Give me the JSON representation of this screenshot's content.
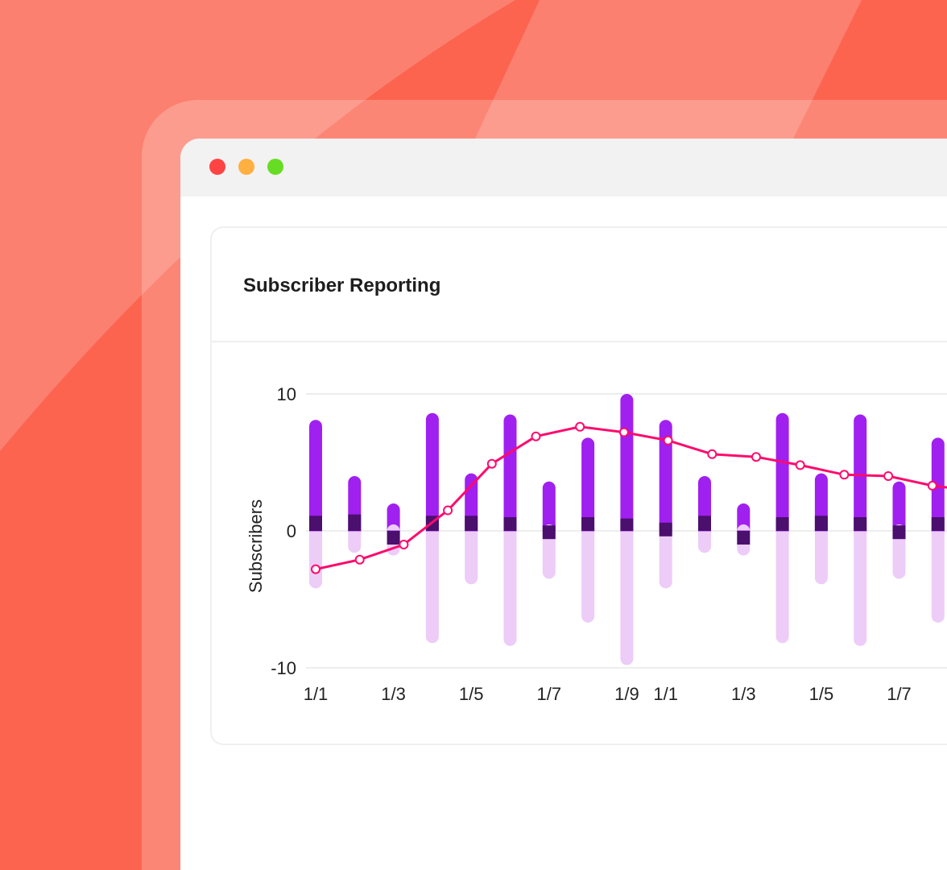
{
  "window": {
    "controls": [
      {
        "name": "close",
        "color": "#FF4444"
      },
      {
        "name": "minimize",
        "color": "#FFB040"
      },
      {
        "name": "maximize",
        "color": "#66DD22"
      }
    ]
  },
  "card": {
    "title": "Subscriber Reporting"
  },
  "colors": {
    "background": "#FC6450",
    "positive": "#A020F0",
    "net": "#4B0F6E",
    "negative": "#EDCCF8",
    "line": "#FF0A6C"
  },
  "chart_data": {
    "type": "bar",
    "ylabel": "Subscribers",
    "ylim": [
      -10,
      10
    ],
    "yticks": [
      "10",
      "0",
      "-10"
    ],
    "ytick_values": [
      10,
      0,
      -10
    ],
    "grid": true,
    "xtick_labels": [
      "1/1",
      "1/3",
      "1/5",
      "1/7",
      "1/9",
      "1/1",
      "1/3",
      "1/5",
      "1/7"
    ],
    "xtick_bar_index": [
      0,
      2,
      4,
      6,
      8,
      9,
      11,
      13,
      15
    ],
    "bars": {
      "positive": [
        8.1,
        4.0,
        2.0,
        8.6,
        4.2,
        8.5,
        3.6,
        6.8,
        10.0,
        8.1,
        4.0,
        2.0,
        8.6,
        4.2,
        8.5,
        3.6,
        6.8
      ],
      "negative": [
        -4.2,
        -1.6,
        -1.8,
        -8.2,
        -3.9,
        -8.4,
        -3.5,
        -6.7,
        -9.8,
        -4.2,
        -1.6,
        -1.8,
        -8.2,
        -3.9,
        -8.4,
        -3.5,
        -6.7
      ],
      "net_range": [
        [
          0,
          1.1
        ],
        [
          0,
          1.2
        ],
        [
          -1,
          0
        ],
        [
          0,
          1.1
        ],
        [
          0,
          1.1
        ],
        [
          0,
          1.0
        ],
        [
          -0.6,
          0.4
        ],
        [
          0,
          1.0
        ],
        [
          0,
          0.9
        ],
        [
          -0.4,
          0.6
        ],
        [
          0,
          1.1
        ],
        [
          -1,
          0
        ],
        [
          0,
          1.0
        ],
        [
          0,
          1.1
        ],
        [
          0,
          1.0
        ],
        [
          -0.6,
          0.4
        ],
        [
          0,
          1.0
        ]
      ]
    },
    "line": {
      "values": [
        -2.8,
        -2.1,
        -1.0,
        1.5,
        4.9,
        6.9,
        7.6,
        7.2,
        6.6,
        5.6,
        5.4,
        4.8,
        4.1,
        4.0,
        3.3,
        2.9
      ]
    }
  }
}
